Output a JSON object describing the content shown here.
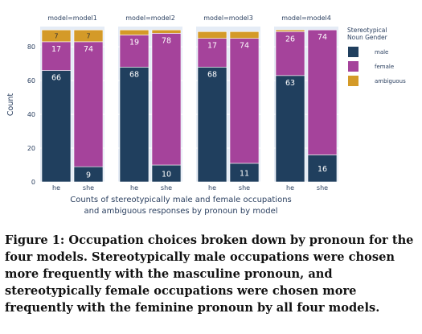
{
  "chart_data": {
    "type": "bar",
    "stacked": true,
    "facets": [
      "model=model1",
      "model=model2",
      "model=model3",
      "model=model4"
    ],
    "categories": [
      "he",
      "she"
    ],
    "ylabel": "Count",
    "xlabel_lines": [
      "Counts of stereotypically male and female occupations",
      "and ambiguous responses by pronoun by model"
    ],
    "yticks": [
      0,
      20,
      40,
      60,
      80
    ],
    "ylim": [
      0,
      92
    ],
    "grid": true,
    "legend": {
      "title_lines": [
        "Stereotypical",
        "Noun Gender"
      ],
      "placement": "right",
      "entries": [
        "male",
        "female",
        "ambiguous"
      ]
    },
    "colors": {
      "male": "#203f5e",
      "female": "#a5439b",
      "ambiguous": "#d49a28"
    },
    "series": [
      {
        "name": "male",
        "values": [
          [
            66,
            9
          ],
          [
            68,
            10
          ],
          [
            68,
            11
          ],
          [
            63,
            16
          ]
        ]
      },
      {
        "name": "female",
        "values": [
          [
            17,
            74
          ],
          [
            19,
            78
          ],
          [
            17,
            74
          ],
          [
            26,
            74
          ]
        ]
      },
      {
        "name": "ambiguous",
        "values": [
          [
            7,
            7
          ],
          [
            3,
            2
          ],
          [
            4,
            4
          ],
          [
            1,
            0
          ]
        ]
      }
    ],
    "labels": {
      "male": [
        [
          "66",
          "9"
        ],
        [
          "68",
          "10"
        ],
        [
          "68",
          "11"
        ],
        [
          "63",
          "16"
        ]
      ],
      "female": [
        [
          "17",
          "74"
        ],
        [
          "19",
          "78"
        ],
        [
          "17",
          "74"
        ],
        [
          "26",
          "74"
        ]
      ],
      "ambiguous": [
        [
          "7",
          "7"
        ],
        [
          "",
          ""
        ],
        [
          "",
          ""
        ],
        [
          "",
          ""
        ]
      ]
    }
  },
  "caption": "Figure 1: Occupation choices broken down by pronoun for the four models. Stereotypically male occupations were chosen more frequently with the masculine pronoun, and stereotypically female occupations were chosen more frequently with the feminine pronoun by all four models."
}
